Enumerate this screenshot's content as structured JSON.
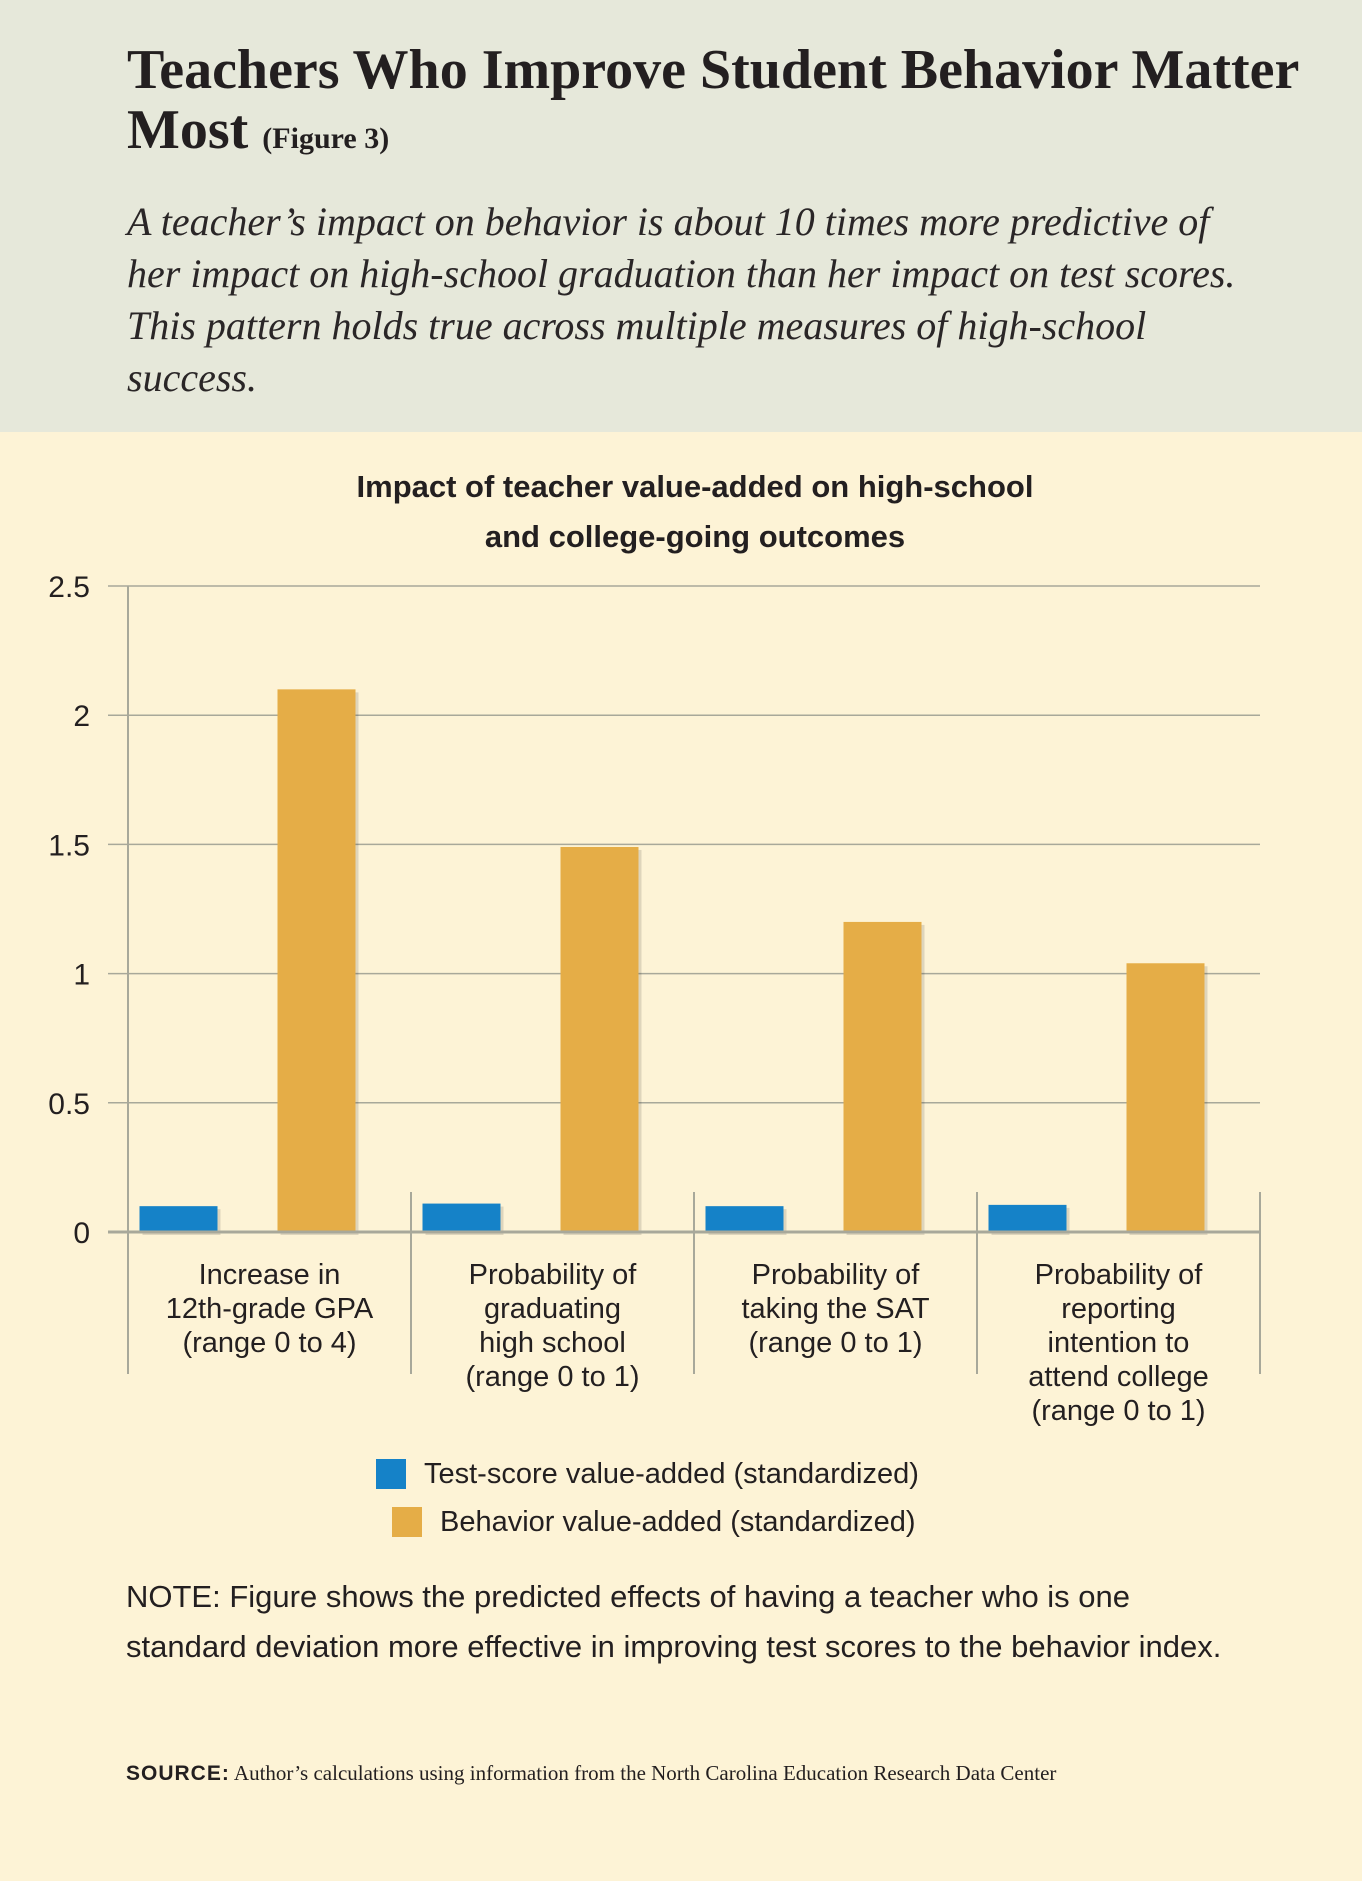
{
  "header": {
    "title": "Teachers Who Improve Student Behavior Matter Most",
    "figure_label": "(Figure 3)",
    "subtitle": "A teacher’s impact on behavior is about 10 times more predictive of her impact on high-school graduation than her impact on test scores. This pattern holds true across multiple measures of high-school success."
  },
  "colors": {
    "test_score": "#1582c8",
    "behavior": "#e5ad47",
    "header_bg": "#e6e8da",
    "body_bg": "#fdf3d6",
    "grid": "#a8a89a"
  },
  "chart_data": {
    "type": "bar",
    "title_lines": [
      "Impact of teacher value-added on high-school",
      "and college-going outcomes"
    ],
    "categories": [
      [
        "Increase in",
        "12th-grade GPA",
        "(range 0 to 4)"
      ],
      [
        "Probability of",
        "graduating",
        "high school",
        "(range 0 to 1)"
      ],
      [
        "Probability of",
        "taking the SAT",
        "(range 0 to 1)"
      ],
      [
        "Probability of",
        "reporting",
        "intention to",
        "attend college",
        "(range 0 to 1)"
      ]
    ],
    "series": [
      {
        "name": "Test-score value-added (standardized)",
        "values": [
          0.1,
          0.11,
          0.1,
          0.105
        ]
      },
      {
        "name": "Behavior value-added (standardized)",
        "values": [
          2.1,
          1.49,
          1.2,
          1.04
        ]
      }
    ],
    "ylim": [
      0,
      2.5
    ],
    "yticks": [
      "0",
      "0.5",
      "1",
      "1.5",
      "2",
      "2.5"
    ],
    "grid": true,
    "legend_position": "bottom-center"
  },
  "legend": {
    "test_label": "Test-score value-added (standardized)",
    "behavior_label": "Behavior value-added (standardized)"
  },
  "note": "NOTE: Figure shows the predicted effects of having a teacher who is one standard deviation more effective in improving test scores to the behavior index.",
  "source": {
    "label": "SOURCE:",
    "text": " Author’s calculations using information from the North Carolina Education Research Data Center"
  }
}
